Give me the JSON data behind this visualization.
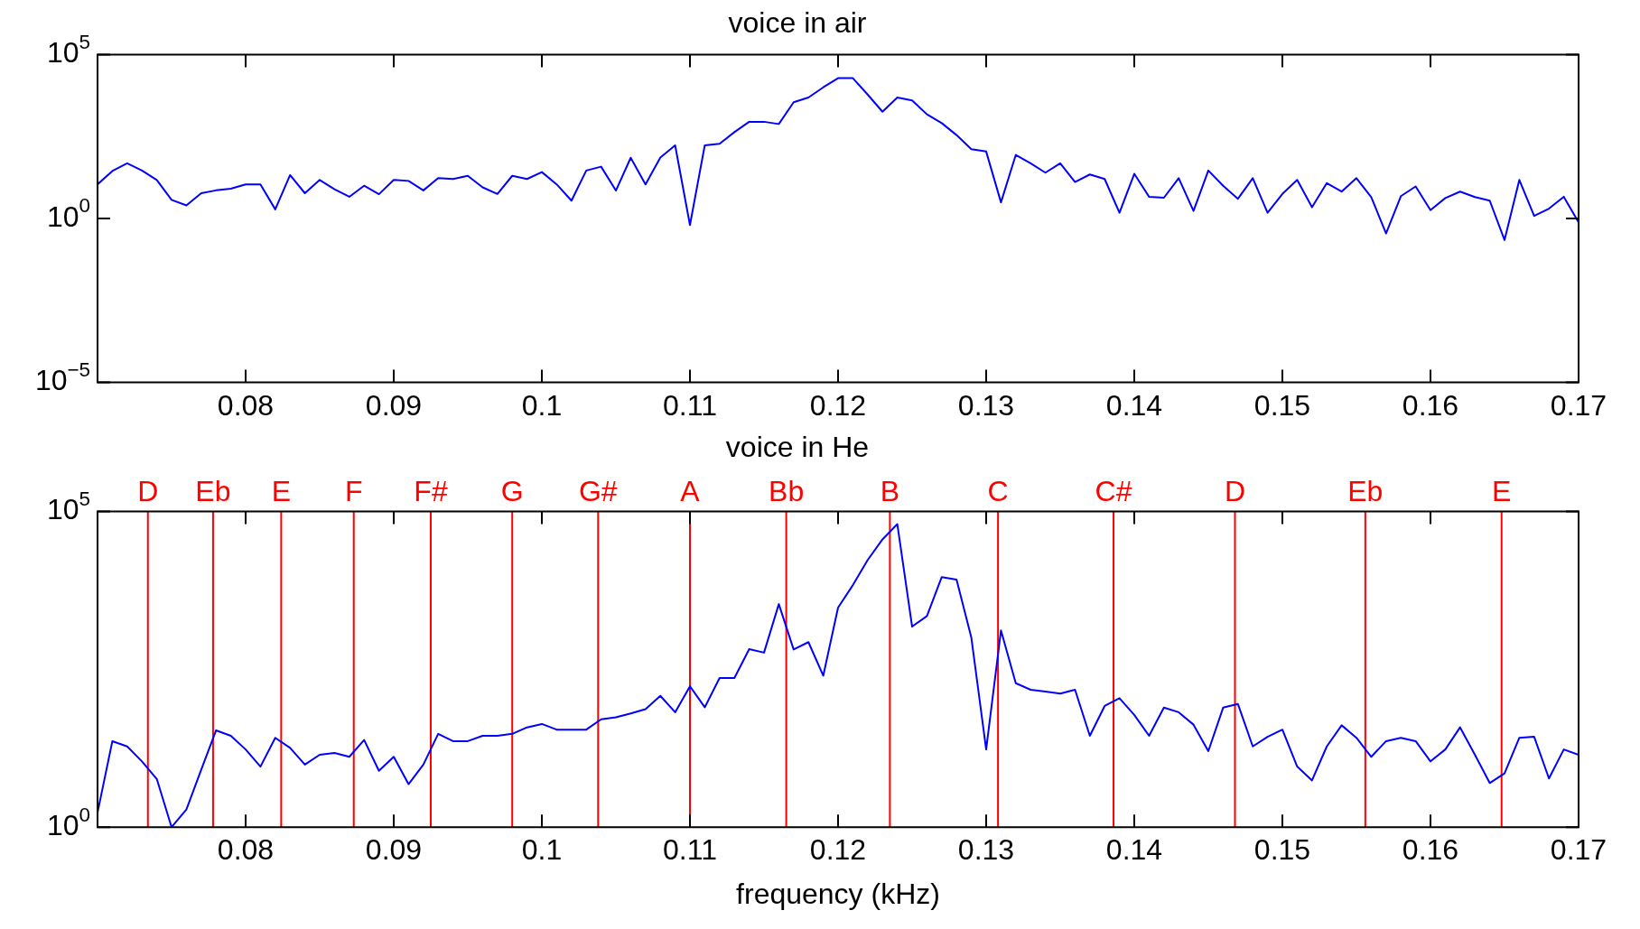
{
  "chart_data": [
    {
      "type": "line",
      "title": "voice in air",
      "log": true,
      "xlim": [
        0.07,
        0.17
      ],
      "xticks": [
        0.08,
        0.09,
        {
          "value": 0.1,
          "label": "0.1"
        },
        0.11,
        0.12,
        0.13,
        0.14,
        0.15,
        0.16,
        0.17
      ],
      "ylim": [
        1e-05,
        100000.0
      ],
      "yticks": [
        {
          "value": 1e-05,
          "label": "10$^{−5}$"
        },
        {
          "value": 1,
          "label": "10$^{0}$"
        },
        {
          "value": 100000.0,
          "label": "10$^{5}$"
        }
      ],
      "x": [
        0.07,
        0.071,
        0.072,
        0.073,
        0.074,
        0.075,
        0.076,
        0.077,
        0.078,
        0.079,
        0.08,
        0.081,
        0.082,
        0.083,
        0.084,
        0.085,
        0.086,
        0.087,
        0.088,
        0.089,
        0.09,
        0.091,
        0.092,
        0.093,
        0.094,
        0.095,
        0.096,
        0.097,
        0.098,
        0.099,
        0.1,
        0.101,
        0.102,
        0.103,
        0.104,
        0.105,
        0.106,
        0.107,
        0.108,
        0.109,
        0.11,
        0.111,
        0.112,
        0.113,
        0.114,
        0.115,
        0.116,
        0.117,
        0.118,
        0.119,
        0.12,
        0.121,
        0.122,
        0.123,
        0.124,
        0.125,
        0.126,
        0.127,
        0.128,
        0.129,
        0.13,
        0.131,
        0.132,
        0.133,
        0.134,
        0.135,
        0.136,
        0.137,
        0.138,
        0.139,
        0.14,
        0.141,
        0.142,
        0.143,
        0.144,
        0.145,
        0.146,
        0.147,
        0.148,
        0.149,
        0.15,
        0.151,
        0.152,
        0.153,
        0.154,
        0.155,
        0.156,
        0.157,
        0.158,
        0.159,
        0.16,
        0.161,
        0.162,
        0.163,
        0.164,
        0.165,
        0.166,
        0.167,
        0.168,
        0.169,
        0.17
      ],
      "series": [
        {
          "color": "#0000ff",
          "values": [
            11,
            28,
            48,
            29,
            15,
            3.7,
            2.5,
            5.9,
            7.2,
            8.1,
            11,
            11,
            1.9,
            21,
            5.9,
            15,
            7.8,
            4.6,
            10,
            5.5,
            15,
            14,
            7.2,
            17,
            16,
            20,
            8.9,
            5.6,
            20,
            16,
            26,
            11,
            3.5,
            29,
            38,
            7.1,
            71,
            11,
            72,
            170,
            0.63,
            170,
            190,
            430,
            890,
            890,
            760,
            3500,
            4900,
            10000,
            19000,
            19000,
            6000,
            1800,
            4900,
            4000,
            1500,
            810,
            350,
            130,
            110,
            3.1,
            87,
            48,
            25,
            48,
            13,
            22,
            16,
            1.5,
            23,
            4.6,
            4.3,
            17,
            1.7,
            29,
            10,
            4,
            17,
            1.5,
            5.6,
            15,
            2.2,
            12,
            6.6,
            17,
            4.5,
            0.35,
            4.8,
            9.5,
            1.8,
            4.2,
            6.6,
            4.5,
            3.5,
            0.22,
            15,
            1.2,
            2,
            4.6,
            0.76
          ]
        }
      ]
    },
    {
      "type": "line",
      "title": "voice in He",
      "xlabel": "frequency (kHz)",
      "log": true,
      "xlim": [
        0.07,
        0.17
      ],
      "xticks": [
        0.08,
        0.09,
        {
          "value": 0.1,
          "label": "0.1"
        },
        0.11,
        0.12,
        0.13,
        0.14,
        0.15,
        0.16,
        0.17
      ],
      "ylim": [
        1,
        100000.0
      ],
      "yticks": [
        {
          "value": 1,
          "label": "10$^{0}$"
        },
        {
          "value": 100000.0,
          "label": "10$^{5}$"
        }
      ],
      "x": [
        0.07,
        0.071,
        0.072,
        0.073,
        0.074,
        0.075,
        0.076,
        0.077,
        0.078,
        0.079,
        0.08,
        0.081,
        0.082,
        0.083,
        0.084,
        0.085,
        0.086,
        0.087,
        0.088,
        0.089,
        0.09,
        0.091,
        0.092,
        0.093,
        0.094,
        0.095,
        0.096,
        0.097,
        0.098,
        0.099,
        0.1,
        0.101,
        0.102,
        0.103,
        0.104,
        0.105,
        0.106,
        0.107,
        0.108,
        0.109,
        0.11,
        0.111,
        0.112,
        0.113,
        0.114,
        0.115,
        0.116,
        0.117,
        0.118,
        0.119,
        0.12,
        0.121,
        0.122,
        0.123,
        0.124,
        0.125,
        0.126,
        0.127,
        0.128,
        0.129,
        0.13,
        0.131,
        0.132,
        0.133,
        0.134,
        0.135,
        0.136,
        0.137,
        0.138,
        0.139,
        0.14,
        0.141,
        0.142,
        0.143,
        0.144,
        0.145,
        0.146,
        0.147,
        0.148,
        0.149,
        0.15,
        0.151,
        0.152,
        0.153,
        0.154,
        0.155,
        0.156,
        0.157,
        0.158,
        0.159,
        0.16,
        0.161,
        0.162,
        0.163,
        0.164,
        0.165,
        0.166,
        0.167,
        0.168,
        0.169,
        0.17
      ],
      "series": [
        {
          "color": "#0000ff",
          "values": [
            1.7,
            23,
            19,
            11,
            5.8,
            1.0,
            1.9,
            8.1,
            34,
            28,
            17,
            9.1,
            26,
            18,
            9.8,
            14,
            15,
            13,
            24,
            7.8,
            13,
            4.8,
            9.8,
            30,
            23,
            23,
            28,
            28,
            30,
            38,
            43,
            35,
            35,
            35,
            51,
            55,
            63,
            74,
            120,
            66,
            170,
            79,
            230,
            230,
            660,
            580,
            3400,
            650,
            850,
            250,
            3000,
            6800,
            17000,
            36000,
            63000,
            1500,
            2200,
            9100,
            8300,
            1000,
            17,
            1300,
            190,
            150,
            140,
            130,
            150,
            28,
            83,
            110,
            60,
            28,
            78,
            66,
            42,
            16,
            78,
            89,
            19,
            27,
            35,
            9.1,
            5.5,
            19,
            41,
            26,
            13,
            23,
            26,
            23,
            11,
            17,
            38,
            14,
            5,
            7.1,
            26,
            27,
            5.9,
            17,
            14
          ]
        }
      ],
      "ref_lines": [
        {
          "axis": "x",
          "value": 0.0734,
          "label": "D",
          "color": "#ff0000"
        },
        {
          "axis": "x",
          "value": 0.0778,
          "label": "Eb",
          "color": "#ff0000"
        },
        {
          "axis": "x",
          "value": 0.0824,
          "label": "E",
          "color": "#ff0000"
        },
        {
          "axis": "x",
          "value": 0.0873,
          "label": "F",
          "color": "#ff0000"
        },
        {
          "axis": "x",
          "value": 0.0925,
          "label": "F#",
          "color": "#ff0000"
        },
        {
          "axis": "x",
          "value": 0.098,
          "label": "G",
          "color": "#ff0000"
        },
        {
          "axis": "x",
          "value": 0.1038,
          "label": "G#",
          "color": "#ff0000"
        },
        {
          "axis": "x",
          "value": 0.11,
          "label": "A",
          "color": "#ff0000"
        },
        {
          "axis": "x",
          "value": 0.1165,
          "label": "Bb",
          "color": "#ff0000"
        },
        {
          "axis": "x",
          "value": 0.1235,
          "label": "B",
          "color": "#ff0000"
        },
        {
          "axis": "x",
          "value": 0.1308,
          "label": "C",
          "color": "#ff0000"
        },
        {
          "axis": "x",
          "value": 0.1386,
          "label": "C#",
          "color": "#ff0000"
        },
        {
          "axis": "x",
          "value": 0.1468,
          "label": "D",
          "color": "#ff0000"
        },
        {
          "axis": "x",
          "value": 0.1556,
          "label": "Eb",
          "color": "#ff0000"
        },
        {
          "axis": "x",
          "value": 0.1648,
          "label": "E",
          "color": "#ff0000"
        }
      ]
    }
  ]
}
